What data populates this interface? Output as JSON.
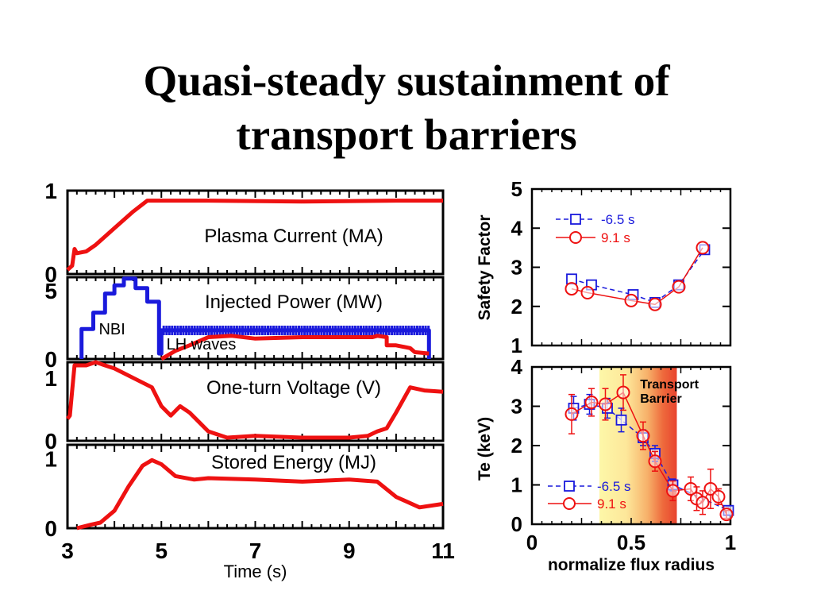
{
  "title_lines": [
    "Quasi-steady sustainment of",
    "transport barriers"
  ],
  "colors": {
    "red": "#ee1111",
    "blue": "#1a1adc",
    "barrier_light": "#fdf7a8",
    "barrier_dark": "#e8432e"
  },
  "chart_data": [
    {
      "type": "line",
      "id": "timeseries",
      "xlabel": "Time (s)",
      "xlim": [
        3,
        11
      ],
      "x_ticks": [
        "3",
        "5",
        "7",
        "9",
        "11"
      ],
      "panels": [
        {
          "label": "Plasma Current (MA)",
          "ylim": [
            0,
            1
          ],
          "y_ticks": [
            "0",
            "1"
          ],
          "series": [
            {
              "color": "red",
              "x": [
                3.0,
                3.1,
                3.15,
                3.2,
                3.4,
                3.6,
                4.0,
                4.4,
                4.7,
                5.0,
                6.0,
                8.0,
                10.0,
                11.0
              ],
              "y": [
                0.05,
                0.1,
                0.3,
                0.25,
                0.27,
                0.35,
                0.55,
                0.75,
                0.88,
                0.88,
                0.88,
                0.87,
                0.88,
                0.88
              ]
            }
          ]
        },
        {
          "label": "Injected Power (MW)",
          "ylim": [
            0,
            6
          ],
          "y_ticks": [
            "0",
            "5"
          ],
          "annotations": [
            {
              "text": "NBI",
              "x": 3.95,
              "y": 1.8
            },
            {
              "text": "LH waves",
              "x": 5.85,
              "y": 0.7
            }
          ],
          "series": [
            {
              "color": "blue",
              "step": true,
              "x": [
                3.3,
                3.3,
                3.55,
                3.55,
                3.8,
                3.8,
                4.0,
                4.0,
                4.2,
                4.2,
                4.45,
                4.45,
                4.7,
                4.7,
                4.95,
                4.95,
                5.0,
                5.0,
                10.7,
                10.7
              ],
              "y": [
                0,
                2.2,
                2.2,
                3.4,
                3.4,
                4.8,
                4.8,
                5.4,
                5.4,
                5.9,
                5.9,
                5.2,
                5.2,
                4.2,
                4.2,
                0.4,
                0.4,
                2.1,
                2.1,
                0
              ]
            },
            {
              "color": "red",
              "x": [
                5.0,
                5.3,
                5.6,
                6.0,
                6.5,
                7.0,
                8.0,
                9.0,
                9.5,
                9.6,
                9.8,
                9.8,
                10.0,
                10.3,
                10.4,
                10.7
              ],
              "y": [
                0.0,
                0.6,
                1.0,
                1.6,
                1.7,
                1.5,
                1.6,
                1.6,
                1.6,
                1.7,
                1.6,
                1.0,
                1.0,
                0.8,
                0.5,
                0.4
              ]
            }
          ]
        },
        {
          "label": "One-turn Voltage (V)",
          "ylim": [
            0,
            1.25
          ],
          "y_ticks": [
            "0",
            "1"
          ],
          "series": [
            {
              "color": "red",
              "x": [
                3.0,
                3.05,
                3.1,
                3.15,
                3.4,
                3.6,
                3.8,
                4.0,
                4.4,
                4.8,
                5.0,
                5.2,
                5.4,
                5.6,
                5.8,
                6.0,
                6.4,
                7.0,
                8.0,
                9.0,
                9.4,
                9.6,
                9.8,
                10.0,
                10.3,
                10.6,
                11.0
              ],
              "y": [
                0.35,
                0.4,
                0.8,
                1.2,
                1.2,
                1.25,
                1.2,
                1.15,
                1.0,
                0.85,
                0.55,
                0.4,
                0.55,
                0.45,
                0.3,
                0.15,
                0.05,
                0.08,
                0.05,
                0.05,
                0.08,
                0.15,
                0.2,
                0.45,
                0.85,
                0.8,
                0.78
              ]
            }
          ]
        },
        {
          "label": "Stored Energy (MJ)",
          "ylim": [
            0,
            1.2
          ],
          "y_ticks": [
            "0",
            "1"
          ],
          "series": [
            {
              "color": "red",
              "x": [
                3.2,
                3.5,
                3.7,
                4.0,
                4.3,
                4.6,
                4.8,
                5.0,
                5.3,
                5.7,
                6.0,
                7.0,
                8.0,
                9.0,
                9.6,
                10.0,
                10.5,
                11.0
              ],
              "y": [
                0.0,
                0.05,
                0.08,
                0.25,
                0.6,
                0.9,
                0.98,
                0.92,
                0.75,
                0.7,
                0.72,
                0.7,
                0.67,
                0.7,
                0.67,
                0.45,
                0.3,
                0.35
              ]
            }
          ]
        }
      ]
    },
    {
      "type": "line",
      "id": "safety-factor",
      "ylabel": "Safety Factor",
      "xlim": [
        0,
        1
      ],
      "ylim": [
        1,
        5
      ],
      "y_ticks": [
        "1",
        "2",
        "3",
        "4",
        "5"
      ],
      "legend": "top-left",
      "series": [
        {
          "name": "-6.5 s",
          "color": "blue",
          "marker": "square",
          "dashed": true,
          "x": [
            0.2,
            0.3,
            0.51,
            0.62,
            0.74,
            0.87
          ],
          "y": [
            2.7,
            2.55,
            2.3,
            2.1,
            2.55,
            3.45
          ]
        },
        {
          "name": "9.1 s",
          "color": "red",
          "marker": "circle",
          "x": [
            0.2,
            0.28,
            0.5,
            0.62,
            0.74,
            0.86
          ],
          "y": [
            2.45,
            2.35,
            2.15,
            2.05,
            2.5,
            3.5
          ]
        }
      ]
    },
    {
      "type": "scatter",
      "id": "electron-temperature",
      "ylabel": "Te (keV)",
      "xlabel": "normalize flux radius",
      "xlim": [
        0,
        1
      ],
      "ylim": [
        0,
        4
      ],
      "x_ticks": [
        "0",
        "0.5",
        "1"
      ],
      "y_ticks": [
        "0",
        "1",
        "2",
        "3",
        "4"
      ],
      "legend": "bottom-left",
      "barrier": {
        "label_lines": [
          "Transport",
          "Barrier"
        ],
        "x_range": [
          0.34,
          0.73
        ]
      },
      "series": [
        {
          "name": "-6.5 s",
          "color": "blue",
          "marker": "square",
          "x": [
            0.21,
            0.29,
            0.38,
            0.45,
            0.56,
            0.62,
            0.71,
            0.99
          ],
          "y": [
            2.95,
            3.05,
            2.95,
            2.65,
            2.2,
            1.8,
            1.0,
            0.35
          ],
          "err": [
            0.3,
            0.25,
            0.25,
            0.3,
            0.2,
            0.2,
            0.15,
            0.1
          ]
        },
        {
          "name": "9.1 s",
          "color": "red",
          "marker": "circle",
          "x": [
            0.2,
            0.3,
            0.37,
            0.46,
            0.56,
            0.62,
            0.71,
            0.8,
            0.83,
            0.86,
            0.9,
            0.94,
            0.98
          ],
          "y": [
            2.8,
            3.1,
            3.05,
            3.35,
            2.25,
            1.6,
            0.85,
            0.9,
            0.65,
            0.55,
            0.9,
            0.7,
            0.25
          ],
          "err": [
            0.5,
            0.35,
            0.4,
            0.45,
            0.35,
            0.25,
            0.25,
            0.3,
            0.3,
            0.3,
            0.5,
            0.2,
            0.1
          ]
        }
      ]
    }
  ]
}
